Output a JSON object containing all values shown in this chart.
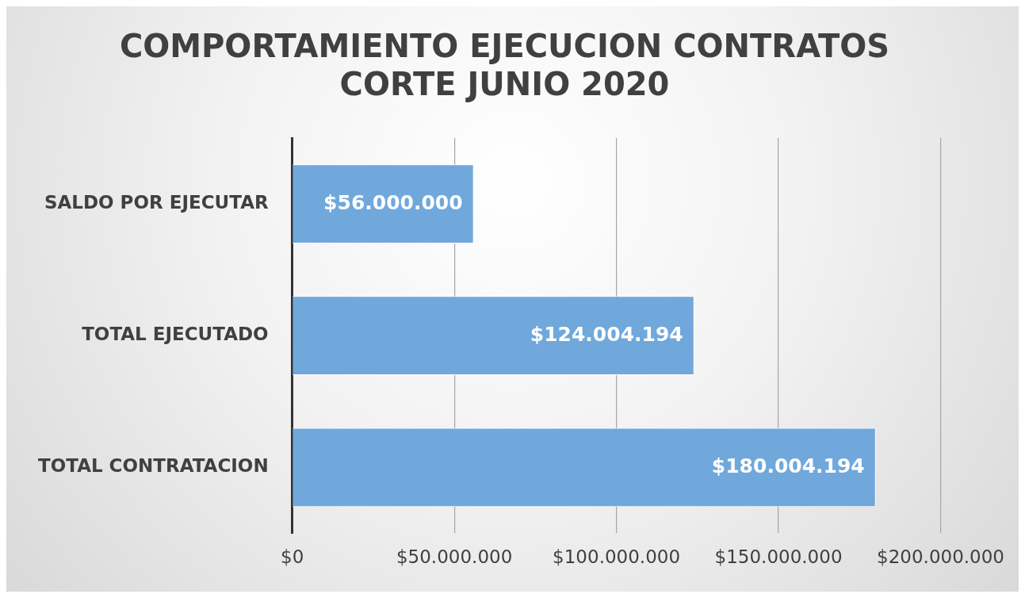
{
  "chart_data": {
    "type": "bar",
    "orientation": "horizontal",
    "title": [
      "COMPORTAMIENTO EJECUCION CONTRATOS",
      "CORTE JUNIO 2020"
    ],
    "categories": [
      "SALDO POR EJECUTAR",
      "TOTAL EJECUTADO",
      "TOTAL CONTRATACION"
    ],
    "values": [
      56000000,
      124004194,
      180004194
    ],
    "value_labels": [
      "$56.000.000",
      "$124.004.194",
      "$180.004.194"
    ],
    "color": "#70a8dc",
    "xlim": [
      0,
      200000000
    ],
    "xticks": [
      {
        "value": 0,
        "label": "$0"
      },
      {
        "value": 50000000,
        "label": "$50.000.000"
      },
      {
        "value": 100000000,
        "label": "$100.000.000"
      },
      {
        "value": 150000000,
        "label": "$150.000.000"
      },
      {
        "value": 200000000,
        "label": "$200.000.000"
      }
    ],
    "grid": "x",
    "legend": false
  }
}
